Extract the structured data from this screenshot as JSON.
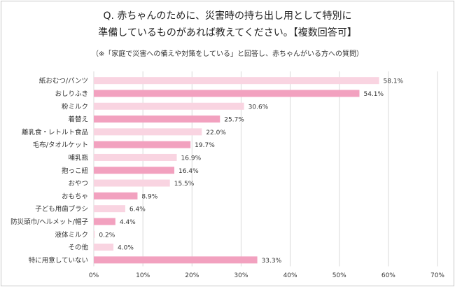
{
  "title_line1": "Q. 赤ちゃんのために、災害時の持ち出し用として特別に",
  "title_line2": "準備しているものがあれば教えてください。【複数回答可】",
  "note": "（※「家庭で災害への備えや対策をしている」と回答し、赤ちゃんがいる方への質問）",
  "colors": {
    "bar_dark": "#f2a1bf",
    "bar_light": "#f9d4e1",
    "grid": "#d9d9d9",
    "text": "#333333"
  },
  "chart_data": {
    "type": "bar",
    "orientation": "horizontal",
    "categories": [
      "紙おむつ/パンツ",
      "おしりふき",
      "粉ミルク",
      "着替え",
      "離乳食・レトルト食品",
      "毛布/タオルケット",
      "哺乳瓶",
      "抱っこ紐",
      "おやつ",
      "おもちゃ",
      "子ども用歯ブラシ",
      "防災頭巾/ヘルメット/帽子",
      "液体ミルク",
      "その他",
      "特に用意していない"
    ],
    "values": [
      58.1,
      54.1,
      30.6,
      25.7,
      22.0,
      19.7,
      16.9,
      16.4,
      15.5,
      8.9,
      6.4,
      4.4,
      0.2,
      4.0,
      33.3
    ],
    "value_labels": [
      "58.1%",
      "54.1%",
      "30.6%",
      "25.7%",
      "22.0%",
      "19.7%",
      "16.9%",
      "16.4%",
      "15.5%",
      "8.9%",
      "6.4%",
      "4.4%",
      "0.2%",
      "4.0%",
      "33.3%"
    ],
    "bar_shade": [
      "light",
      "dark",
      "light",
      "dark",
      "light",
      "dark",
      "light",
      "dark",
      "light",
      "dark",
      "light",
      "dark",
      "light",
      "light",
      "dark"
    ],
    "xlim": [
      0,
      70
    ],
    "ticks": [
      0,
      10,
      20,
      30,
      40,
      50,
      60,
      70
    ],
    "tick_labels": [
      "0%",
      "10%",
      "20%",
      "30%",
      "40%",
      "50%",
      "60%",
      "70%"
    ],
    "grid": true,
    "legend": false
  }
}
